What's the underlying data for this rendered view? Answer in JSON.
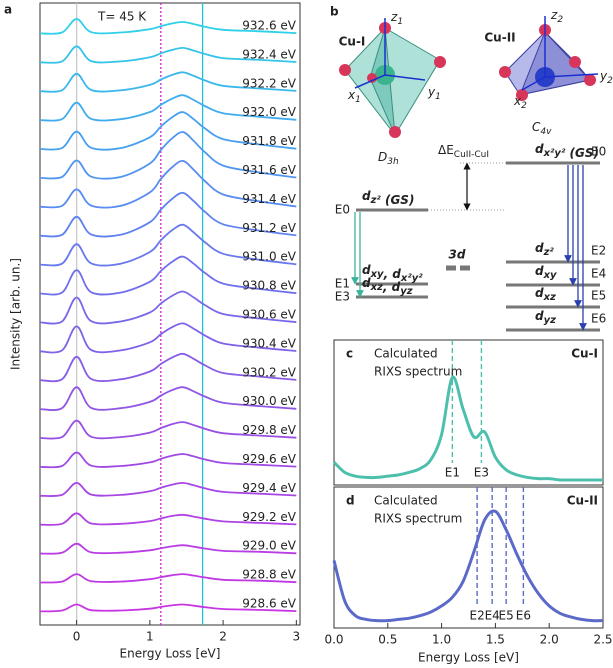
{
  "chart_data": [
    {
      "type": "line",
      "panel": "a",
      "annotation": "T= 45 K",
      "xlabel": "Energy Loss [eV]",
      "ylabel": "Intensity [arb. un.]",
      "xlim": [
        -0.5,
        3.05
      ],
      "xticks": [
        0,
        1,
        2,
        3
      ],
      "x": [
        -0.5,
        -0.2,
        0,
        0.2,
        0.6,
        1.0,
        1.15,
        1.3,
        1.45,
        1.6,
        1.75,
        2.0,
        2.5,
        3.0
      ],
      "vlines": [
        {
          "x": 0,
          "color": "#c8c8c8",
          "style": "solid"
        },
        {
          "x": 1.15,
          "color": "#d020d0",
          "style": "dotted"
        },
        {
          "x": 1.72,
          "color": "#20c0d8",
          "style": "solid"
        }
      ],
      "series": [
        {
          "name": "932.6 eV",
          "color": "#2fd0e8",
          "values": [
            0.02,
            0.05,
            0.5,
            0.06,
            0.05,
            0.16,
            0.26,
            0.35,
            0.4,
            0.33,
            0.24,
            0.14,
            0.09,
            0.03
          ]
        },
        {
          "name": "932.4 eV",
          "color": "#34c4ea",
          "values": [
            0.02,
            0.05,
            0.55,
            0.06,
            0.05,
            0.19,
            0.32,
            0.43,
            0.5,
            0.41,
            0.3,
            0.16,
            0.1,
            0.03
          ]
        },
        {
          "name": "932.2 eV",
          "color": "#3ab8ec",
          "values": [
            0.02,
            0.05,
            0.6,
            0.06,
            0.05,
            0.23,
            0.41,
            0.56,
            0.65,
            0.53,
            0.38,
            0.2,
            0.11,
            0.03
          ]
        },
        {
          "name": "932.0 eV",
          "color": "#40acee",
          "values": [
            0.02,
            0.05,
            0.6,
            0.06,
            0.05,
            0.29,
            0.53,
            0.73,
            0.85,
            0.69,
            0.49,
            0.25,
            0.13,
            0.03
          ]
        },
        {
          "name": "931.8 eV",
          "color": "#48a0f0",
          "values": [
            0.02,
            0.05,
            0.6,
            0.06,
            0.05,
            0.41,
            0.77,
            1.07,
            1.25,
            1.01,
            0.71,
            0.35,
            0.17,
            0.03
          ]
        },
        {
          "name": "931.6 eV",
          "color": "#5096f0",
          "values": [
            0.02,
            0.05,
            0.6,
            0.06,
            0.05,
            0.5,
            0.95,
            1.33,
            1.55,
            1.25,
            0.88,
            0.43,
            0.2,
            0.03
          ]
        },
        {
          "name": "931.4 eV",
          "color": "#588cf0",
          "values": [
            0.02,
            0.05,
            0.6,
            0.06,
            0.05,
            0.5,
            0.95,
            1.33,
            1.55,
            1.25,
            0.88,
            0.43,
            0.2,
            0.03
          ]
        },
        {
          "name": "931.2 eV",
          "color": "#6082f0",
          "values": [
            0.02,
            0.05,
            0.65,
            0.06,
            0.05,
            0.47,
            0.89,
            1.24,
            1.45,
            1.17,
            0.82,
            0.4,
            0.19,
            0.03
          ]
        },
        {
          "name": "931.0 eV",
          "color": "#6878ee",
          "values": [
            0.02,
            0.05,
            0.7,
            0.06,
            0.05,
            0.44,
            0.83,
            1.16,
            1.35,
            1.09,
            0.77,
            0.38,
            0.18,
            0.03
          ]
        },
        {
          "name": "930.8 eV",
          "color": "#7070ec",
          "values": [
            0.02,
            0.05,
            0.8,
            0.06,
            0.05,
            0.41,
            0.77,
            1.07,
            1.25,
            1.01,
            0.71,
            0.35,
            0.17,
            0.03
          ]
        },
        {
          "name": "930.6 eV",
          "color": "#7868ea",
          "values": [
            0.02,
            0.05,
            0.85,
            0.06,
            0.05,
            0.35,
            0.65,
            0.9,
            1.05,
            0.85,
            0.6,
            0.3,
            0.15,
            0.03
          ]
        },
        {
          "name": "930.4 eV",
          "color": "#8062e8",
          "values": [
            0.02,
            0.05,
            0.85,
            0.06,
            0.05,
            0.32,
            0.59,
            0.82,
            0.95,
            0.77,
            0.55,
            0.28,
            0.14,
            0.03
          ]
        },
        {
          "name": "930.2 eV",
          "color": "#885ce6",
          "values": [
            0.02,
            0.05,
            0.8,
            0.06,
            0.05,
            0.31,
            0.56,
            0.77,
            0.9,
            0.73,
            0.52,
            0.26,
            0.14,
            0.03
          ]
        },
        {
          "name": "930.0 eV",
          "color": "#9056e4",
          "values": [
            0.02,
            0.05,
            0.75,
            0.06,
            0.05,
            0.26,
            0.47,
            0.65,
            0.75,
            0.61,
            0.44,
            0.23,
            0.12,
            0.03
          ]
        },
        {
          "name": "929.8 eV",
          "color": "#9850e4",
          "values": [
            0.02,
            0.05,
            0.6,
            0.06,
            0.05,
            0.2,
            0.35,
            0.48,
            0.55,
            0.45,
            0.33,
            0.18,
            0.1,
            0.03
          ]
        },
        {
          "name": "929.6 eV",
          "color": "#a04ae4",
          "values": [
            0.02,
            0.05,
            0.5,
            0.06,
            0.05,
            0.17,
            0.29,
            0.39,
            0.45,
            0.37,
            0.27,
            0.15,
            0.09,
            0.03
          ]
        },
        {
          "name": "929.4 eV",
          "color": "#a846e4",
          "values": [
            0.02,
            0.05,
            0.45,
            0.06,
            0.05,
            0.17,
            0.29,
            0.39,
            0.45,
            0.37,
            0.27,
            0.15,
            0.09,
            0.03
          ]
        },
        {
          "name": "929.2 eV",
          "color": "#b042e4",
          "values": [
            0.02,
            0.05,
            0.4,
            0.06,
            0.05,
            0.14,
            0.23,
            0.31,
            0.35,
            0.29,
            0.22,
            0.13,
            0.08,
            0.03
          ]
        },
        {
          "name": "929.0 eV",
          "color": "#b83ee4",
          "values": [
            0.02,
            0.05,
            0.35,
            0.06,
            0.05,
            0.13,
            0.2,
            0.26,
            0.3,
            0.25,
            0.19,
            0.11,
            0.08,
            0.03
          ]
        },
        {
          "name": "928.8 eV",
          "color": "#c03ae4",
          "values": [
            0.02,
            0.05,
            0.3,
            0.06,
            0.05,
            0.13,
            0.2,
            0.26,
            0.3,
            0.25,
            0.19,
            0.11,
            0.08,
            0.03
          ]
        },
        {
          "name": "928.6 eV",
          "color": "#c836e4",
          "values": [
            0.02,
            0.05,
            0.25,
            0.06,
            0.05,
            0.11,
            0.17,
            0.22,
            0.25,
            0.21,
            0.16,
            0.1,
            0.07,
            0.03
          ]
        }
      ]
    },
    {
      "type": "line",
      "panel": "c",
      "title": "Cu-I",
      "note": [
        "Calculated",
        "RIXS spectrum"
      ],
      "color": "#4dc0ad",
      "xlim": [
        0,
        2.5
      ],
      "ylim": [
        0,
        1.1
      ],
      "x": [
        0,
        0.1,
        0.2,
        0.3,
        0.4,
        0.5,
        0.6,
        0.7,
        0.8,
        0.9,
        1.0,
        1.1,
        1.2,
        1.3,
        1.4,
        1.5,
        1.6,
        1.7,
        1.8,
        1.9,
        2.0,
        2.1,
        2.2,
        2.3,
        2.4,
        2.5
      ],
      "values": [
        0.18,
        0.1,
        0.07,
        0.06,
        0.06,
        0.07,
        0.08,
        0.1,
        0.13,
        0.2,
        0.4,
        0.85,
        0.6,
        0.38,
        0.42,
        0.22,
        0.12,
        0.08,
        0.06,
        0.05,
        0.05,
        0.04,
        0.04,
        0.04,
        0.04,
        0.04
      ],
      "vlines": [
        {
          "x": 1.1,
          "label": "E1"
        },
        {
          "x": 1.37,
          "label": "E3"
        }
      ]
    },
    {
      "type": "line",
      "panel": "d",
      "title": "Cu-II",
      "note": [
        "Calculated",
        "RIXS spectrum"
      ],
      "color": "#5b6ac8",
      "xlabel": "Energy Loss [eV]",
      "xlim": [
        0,
        2.5
      ],
      "ylim": [
        0,
        1.1
      ],
      "xticks": [
        {
          "value": 0,
          "label": "0.0"
        },
        0.5,
        {
          "value": 1,
          "label": "1.0"
        },
        1.5,
        {
          "value": 2,
          "label": "2.0"
        },
        2.5
      ],
      "x": [
        0,
        0.1,
        0.2,
        0.3,
        0.4,
        0.5,
        0.6,
        0.7,
        0.8,
        0.9,
        1.0,
        1.1,
        1.2,
        1.3,
        1.4,
        1.5,
        1.6,
        1.7,
        1.8,
        1.9,
        2.0,
        2.1,
        2.2,
        2.3,
        2.4,
        2.5
      ],
      "values": [
        0.55,
        0.22,
        0.1,
        0.07,
        0.06,
        0.06,
        0.07,
        0.08,
        0.1,
        0.13,
        0.18,
        0.25,
        0.38,
        0.62,
        0.88,
        0.95,
        0.8,
        0.6,
        0.42,
        0.28,
        0.18,
        0.12,
        0.09,
        0.07,
        0.06,
        0.06
      ],
      "vlines": [
        {
          "x": 1.33,
          "label": "E2"
        },
        {
          "x": 1.47,
          "label": "E4"
        },
        {
          "x": 1.6,
          "label": "E5"
        },
        {
          "x": 1.76,
          "label": "E6"
        }
      ]
    }
  ],
  "diagram": {
    "panel": "b",
    "left": {
      "name": "Cu-I",
      "group": {
        "main": "D",
        "sub": "3h"
      },
      "axes": [
        {
          "main": "z",
          "sub": "1"
        },
        {
          "main": "x",
          "sub": "1"
        },
        {
          "main": "y",
          "sub": "1"
        }
      ],
      "levels": [
        {
          "parts": [
            {
              "main": "d",
              "sub": "z²"
            }
          ],
          "suffix": " (GS)",
          "label": "E0"
        },
        {
          "parts": [
            {
              "main": "d",
              "sub": "xy"
            },
            {
              "main": ", d",
              "sub": "x²y²"
            }
          ],
          "label": "E1"
        },
        {
          "parts": [
            {
              "main": "d",
              "sub": "xz"
            },
            {
              "main": ", d",
              "sub": "yz"
            }
          ],
          "label": "E3"
        }
      ]
    },
    "right": {
      "name": "Cu-II",
      "group": {
        "main": "C",
        "sub": "4v"
      },
      "axes": [
        {
          "main": "z",
          "sub": "2"
        },
        {
          "main": "x",
          "sub": "2"
        },
        {
          "main": "y",
          "sub": "2"
        }
      ],
      "levels": [
        {
          "parts": [
            {
              "main": "d",
              "sub": "x²y²"
            }
          ],
          "suffix": " (GS)",
          "label": "E0"
        },
        {
          "parts": [
            {
              "main": "d",
              "sub": "z²"
            }
          ],
          "label": "E2"
        },
        {
          "parts": [
            {
              "main": "d",
              "sub": "xy"
            }
          ],
          "label": "E4"
        },
        {
          "parts": [
            {
              "main": "d",
              "sub": "xz"
            }
          ],
          "label": "E5"
        },
        {
          "parts": [
            {
              "main": "d",
              "sub": "yz"
            }
          ],
          "label": "E6"
        }
      ]
    },
    "center": "3d",
    "delta": {
      "main": "ΔE",
      "sub": "CuII-CuI"
    }
  }
}
